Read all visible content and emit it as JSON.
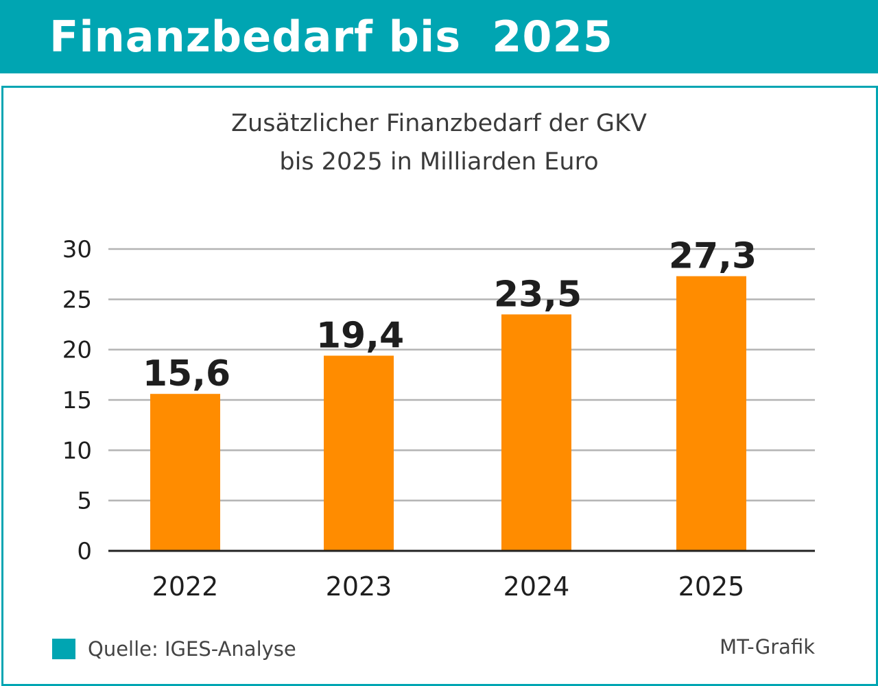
{
  "header": {
    "title": "Finanzbedarf bis  2025"
  },
  "colors": {
    "accent": "#00a5b2",
    "bar": "#ff8c00",
    "grid": "#b3b3b3",
    "text": "#1e1e1e"
  },
  "chart_data": {
    "type": "bar",
    "title": "Zusätzlicher Finanzbedarf der GKV",
    "subtitle": "bis 2025 in Milliarden Euro",
    "categories": [
      "2022",
      "2023",
      "2024",
      "2025"
    ],
    "values": [
      15.6,
      19.4,
      23.5,
      27.3
    ],
    "value_labels": [
      "15,6",
      "19,4",
      "23,5",
      "27,3"
    ],
    "yticks": [
      0,
      5,
      10,
      15,
      20,
      25,
      30
    ],
    "ylim": [
      0,
      30
    ],
    "grid": true,
    "xlabel": "",
    "ylabel": ""
  },
  "footer": {
    "source": "Quelle: IGES-Analyse",
    "legend_icon": "square-swatch-icon",
    "credit": "MT-Grafik"
  }
}
